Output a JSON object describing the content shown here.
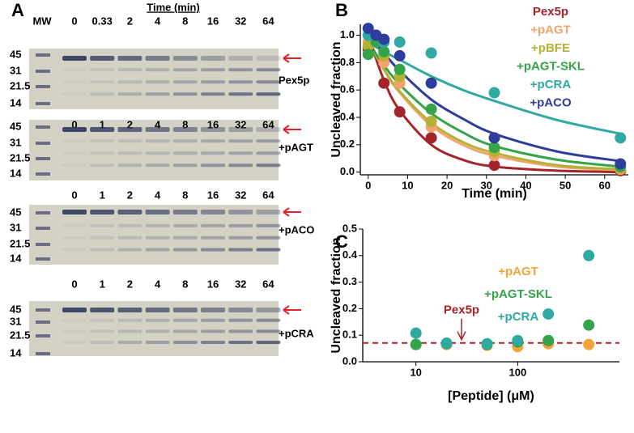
{
  "panel_labels": [
    "A",
    "B",
    "C"
  ],
  "gels": {
    "title": "Time (min)",
    "lane_label": "MW",
    "mw_labels": [
      "45",
      "31",
      "21.5",
      "14"
    ],
    "blots": [
      {
        "times": [
          "0",
          "0.33",
          "2",
          "4",
          "8",
          "16",
          "32",
          "64"
        ],
        "label": "Pex5p"
      },
      {
        "times": [
          "0",
          "1",
          "2",
          "4",
          "8",
          "16",
          "32",
          "64"
        ],
        "label": "+pAGT"
      },
      {
        "times": [
          "0",
          "1",
          "2",
          "4",
          "8",
          "16",
          "32",
          "64"
        ],
        "label": "+pACO"
      },
      {
        "times": [
          "0",
          "1",
          "2",
          "4",
          "8",
          "16",
          "32",
          "64"
        ],
        "label": "+pCRA"
      }
    ]
  },
  "chart_data": [
    {
      "type": "scatter",
      "xlabel": "Time (min)",
      "ylabel": "Uncleaved fraction",
      "xlim": [
        -2,
        66
      ],
      "xticks": [
        0,
        10,
        20,
        30,
        40,
        50,
        60
      ],
      "ylim": [
        -0.02,
        1.08
      ],
      "yticks": [
        {
          "value": 0,
          "label": "0.0"
        },
        0.2,
        0.4,
        0.6,
        0.8,
        {
          "value": 1,
          "label": "1.0"
        }
      ],
      "legend": "upper right",
      "series": [
        {
          "name": "Pex5p",
          "color": "#a3252b",
          "x": [
            0,
            2,
            4,
            8,
            16,
            32,
            64
          ],
          "values": [
            0.9,
            0.95,
            0.65,
            0.44,
            0.25,
            0.05,
            0.01
          ],
          "fit_x": [
            0,
            4,
            8,
            16,
            24,
            32,
            48,
            64
          ],
          "fit_values": [
            1.0,
            0.67,
            0.45,
            0.2,
            0.09,
            0.04,
            0.01,
            0.0
          ]
        },
        {
          "name": "+pAGT",
          "color": "#f3a36d",
          "x": [
            0,
            2,
            4,
            8,
            16,
            32,
            64
          ],
          "values": [
            0.95,
            0.95,
            0.8,
            0.65,
            0.33,
            0.12,
            0.02
          ],
          "fit_x": [
            0,
            4,
            8,
            16,
            24,
            32,
            48,
            64
          ],
          "fit_values": [
            0.97,
            0.75,
            0.58,
            0.34,
            0.2,
            0.12,
            0.04,
            0.015
          ]
        },
        {
          "name": "+pBFE",
          "color": "#b3b236",
          "x": [
            0,
            2,
            4,
            8,
            16,
            32,
            64
          ],
          "values": [
            0.92,
            0.95,
            0.85,
            0.7,
            0.37,
            0.15,
            0.03
          ],
          "fit_x": [
            0,
            4,
            8,
            16,
            24,
            32,
            48,
            64
          ],
          "fit_values": [
            0.95,
            0.75,
            0.59,
            0.36,
            0.22,
            0.14,
            0.05,
            0.02
          ]
        },
        {
          "name": "+pAGT-SKL",
          "color": "#35a34a",
          "x": [
            0,
            2,
            4,
            8,
            16,
            32,
            64
          ],
          "values": [
            0.86,
            0.95,
            0.88,
            0.75,
            0.46,
            0.18,
            0.04
          ],
          "fit_x": [
            0,
            4,
            8,
            16,
            24,
            32,
            48,
            64
          ],
          "fit_values": [
            0.95,
            0.78,
            0.64,
            0.43,
            0.29,
            0.19,
            0.09,
            0.04
          ]
        },
        {
          "name": "+pCRA",
          "color": "#2faaa2",
          "x": [
            0,
            2,
            4,
            8,
            16,
            32,
            64
          ],
          "values": [
            1.0,
            1.0,
            0.95,
            0.95,
            0.87,
            0.58,
            0.25
          ],
          "fit_x": [
            0,
            4,
            8,
            16,
            24,
            32,
            48,
            64
          ],
          "fit_values": [
            0.95,
            0.88,
            0.82,
            0.7,
            0.6,
            0.52,
            0.38,
            0.28
          ]
        },
        {
          "name": "+pACO",
          "color": "#2e3d9c",
          "x": [
            0,
            2,
            4,
            8,
            16,
            32,
            64
          ],
          "values": [
            1.05,
            1.0,
            0.97,
            0.85,
            0.65,
            0.25,
            0.06
          ],
          "fit_x": [
            0,
            4,
            8,
            16,
            24,
            32,
            48,
            64
          ],
          "fit_values": [
            1.02,
            0.87,
            0.74,
            0.53,
            0.39,
            0.28,
            0.15,
            0.08
          ]
        }
      ]
    },
    {
      "type": "scatter",
      "xlabel": "[Peptide] (μM)",
      "ylabel": "Uncleaved fraction",
      "log_x": true,
      "xlim": [
        3,
        1000
      ],
      "xticks": [
        10,
        100
      ],
      "ylim": [
        0,
        0.5
      ],
      "yticks": [
        {
          "value": 0,
          "label": "0.0"
        },
        0.1,
        0.2,
        0.3,
        0.4,
        0.5
      ],
      "legend": "center",
      "reference_line": {
        "label": "Pex5p",
        "value": 0.071,
        "color": "#a3252b"
      },
      "series": [
        {
          "name": "+pAGT",
          "color": "#f5a33a",
          "x": [
            10,
            20,
            50,
            100,
            200,
            500
          ],
          "values": [
            0.065,
            0.065,
            0.062,
            0.057,
            0.068,
            0.065
          ]
        },
        {
          "name": "+pAGT-SKL",
          "color": "#35a34a",
          "x": [
            10,
            20,
            50,
            100,
            200,
            500
          ],
          "values": [
            0.065,
            0.068,
            0.065,
            0.075,
            0.08,
            0.138
          ]
        },
        {
          "name": "+pCRA",
          "color": "#2faaa2",
          "x": [
            10,
            20,
            50,
            100,
            200,
            500
          ],
          "values": [
            0.108,
            0.07,
            0.068,
            0.08,
            0.18,
            0.4
          ]
        }
      ]
    }
  ]
}
